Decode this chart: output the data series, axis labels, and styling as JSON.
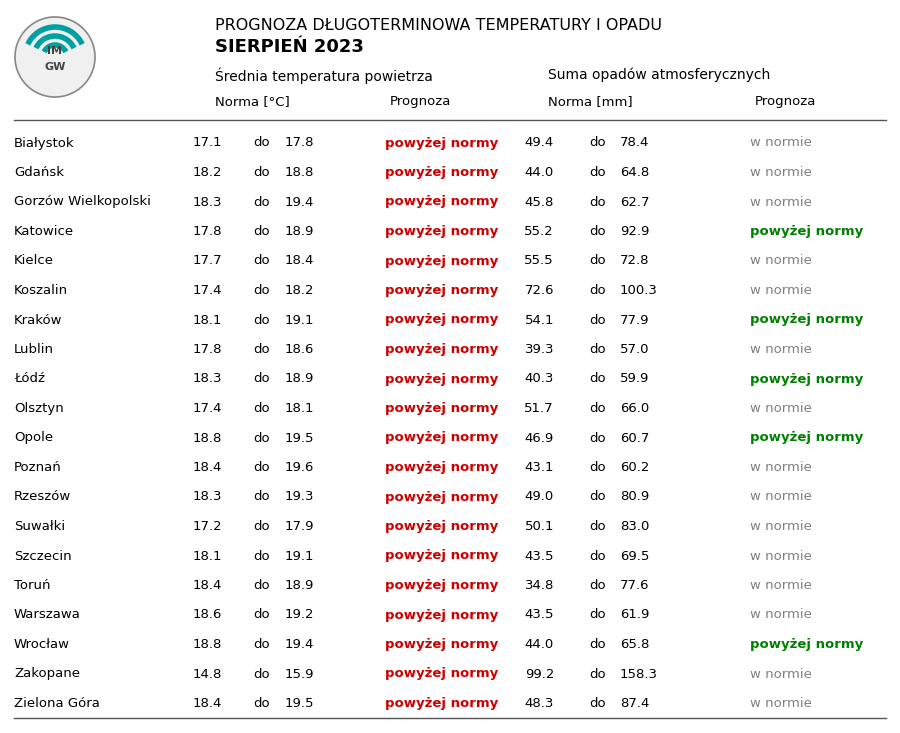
{
  "title_line1": "PROGNOZA DŁUGOTERMINOWA TEMPERATURY I OPADU",
  "title_line2": "SIERPIEŃ 2023",
  "header_temp": "Średniatemperatura powietrza",
  "header_precip": "Suma opadów atmosferycznych",
  "col_norma_temp": "Norma [°C]",
  "col_prognoza": "Prognoza",
  "col_norma_mm": "Norma [mm]",
  "cities": [
    "Białystok",
    "Gdańsk",
    "Gorzów Wielkopolski",
    "Katowice",
    "Kielce",
    "Koszalin",
    "Kraków",
    "Lublin",
    "Łódź",
    "Olsztyn",
    "Opole",
    "Poznań",
    "Rzeszów",
    "Suwałki",
    "Szczecin",
    "Toruń",
    "Warszawa",
    "Wrocław",
    "Zakopane",
    "Zielona Góra"
  ],
  "temp_low": [
    17.1,
    18.2,
    18.3,
    17.8,
    17.7,
    17.4,
    18.1,
    17.8,
    18.3,
    17.4,
    18.8,
    18.4,
    18.3,
    17.2,
    18.1,
    18.4,
    18.6,
    18.8,
    14.8,
    18.4
  ],
  "temp_high": [
    17.8,
    18.8,
    19.4,
    18.9,
    18.4,
    18.2,
    19.1,
    18.6,
    18.9,
    18.1,
    19.5,
    19.6,
    19.3,
    17.9,
    19.1,
    18.9,
    19.2,
    19.4,
    15.9,
    19.5
  ],
  "temp_prognoza": [
    "powyżej normy",
    "powyżej normy",
    "powyżej normy",
    "powyżej normy",
    "powyżej normy",
    "powyżej normy",
    "powyżej normy",
    "powyżej normy",
    "powyżej normy",
    "powyżej normy",
    "powyżej normy",
    "powyżej normy",
    "powyżej normy",
    "powyżej normy",
    "powyżej normy",
    "powyżej normy",
    "powyżej normy",
    "powyżej normy",
    "powyżej normy",
    "powyżej normy"
  ],
  "temp_prognoza_colors": [
    "#cc0000",
    "#cc0000",
    "#cc0000",
    "#cc0000",
    "#cc0000",
    "#cc0000",
    "#cc0000",
    "#cc0000",
    "#cc0000",
    "#cc0000",
    "#cc0000",
    "#cc0000",
    "#cc0000",
    "#cc0000",
    "#cc0000",
    "#cc0000",
    "#cc0000",
    "#cc0000",
    "#cc0000",
    "#cc0000"
  ],
  "precip_low": [
    49.4,
    44.0,
    45.8,
    55.2,
    55.5,
    72.6,
    54.1,
    39.3,
    40.3,
    51.7,
    46.9,
    43.1,
    49.0,
    50.1,
    43.5,
    34.8,
    43.5,
    44.0,
    99.2,
    48.3
  ],
  "precip_high": [
    78.4,
    64.8,
    62.7,
    92.9,
    72.8,
    100.3,
    77.9,
    57.0,
    59.9,
    66.0,
    60.7,
    60.2,
    80.9,
    83.0,
    69.5,
    77.6,
    61.9,
    65.8,
    158.3,
    87.4
  ],
  "precip_prognoza": [
    "w normie",
    "w normie",
    "w normie",
    "powyżej normy",
    "w normie",
    "w normie",
    "powyżej normy",
    "w normie",
    "powyżej normy",
    "w normie",
    "powyżej normy",
    "w normie",
    "w normie",
    "w normie",
    "w normie",
    "w normie",
    "w normie",
    "powyżej normy",
    "w normie",
    "w normie"
  ],
  "precip_prognoza_colors": [
    "#808080",
    "#808080",
    "#808080",
    "#008000",
    "#808080",
    "#808080",
    "#008000",
    "#808080",
    "#008000",
    "#808080",
    "#008000",
    "#808080",
    "#808080",
    "#808080",
    "#808080",
    "#808080",
    "#808080",
    "#008000",
    "#808080",
    "#808080"
  ],
  "bg_color": "#ffffff",
  "text_color": "#000000",
  "line_color": "#555555"
}
